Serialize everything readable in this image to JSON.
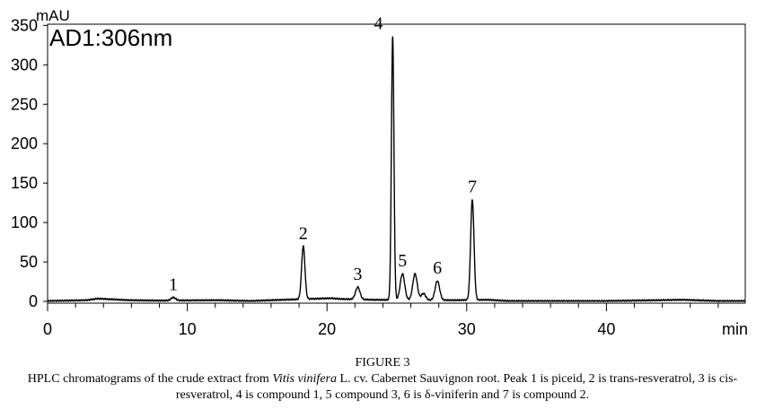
{
  "chart_data": {
    "type": "line",
    "title": "AD1:306nm",
    "xlabel": "min",
    "ylabel": "mAU",
    "xlim": [
      0,
      50
    ],
    "ylim": [
      0,
      350
    ],
    "x_ticks": [
      0,
      10,
      20,
      30,
      40
    ],
    "y_ticks": [
      0,
      50,
      100,
      150,
      200,
      250,
      300,
      350
    ],
    "grid": false,
    "series": [
      {
        "values": "chromatogram trace",
        "peaks": [
          {
            "label": "1",
            "x": 9.0,
            "y": 5
          },
          {
            "label": "2",
            "x": 18.3,
            "y": 70
          },
          {
            "label": "3",
            "x": 22.2,
            "y": 18
          },
          {
            "label": "4",
            "x": 24.7,
            "y": 336
          },
          {
            "label": "5",
            "x": 25.4,
            "y": 35
          },
          {
            "label": "",
            "x": 26.3,
            "y": 35
          },
          {
            "label": "",
            "x": 26.9,
            "y": 10
          },
          {
            "label": "6",
            "x": 27.9,
            "y": 26
          },
          {
            "label": "7",
            "x": 30.4,
            "y": 129
          }
        ],
        "baseline": [
          [
            0,
            0.5
          ],
          [
            2.8,
            1.5
          ],
          [
            3.6,
            3.5
          ],
          [
            5.8,
            1.5
          ],
          [
            8.0,
            1
          ],
          [
            12.2,
            1.5
          ],
          [
            14.5,
            0.5
          ],
          [
            16.0,
            1.5
          ],
          [
            20.3,
            4
          ],
          [
            21.0,
            3
          ],
          [
            23.4,
            2
          ],
          [
            29.0,
            1.5
          ],
          [
            31.5,
            2
          ],
          [
            33.0,
            0.5
          ],
          [
            40.0,
            0.5
          ],
          [
            45.5,
            2
          ],
          [
            48.0,
            0.5
          ],
          [
            50,
            0.5
          ]
        ]
      }
    ]
  },
  "caption": {
    "figure_label": "FIGURE 3",
    "text_before_italic": "HPLC chromatograms of the crude extract from ",
    "italic": "Vitis vinifera",
    "text_after_italic": " L. cv. Cabernet Sauvignon root. Peak 1 is piceid, 2 is trans-resveratrol, 3 is cis-resveratrol, 4 is compound 1, 5 compound 3, 6 is δ-viniferin and 7 is compound 2."
  }
}
